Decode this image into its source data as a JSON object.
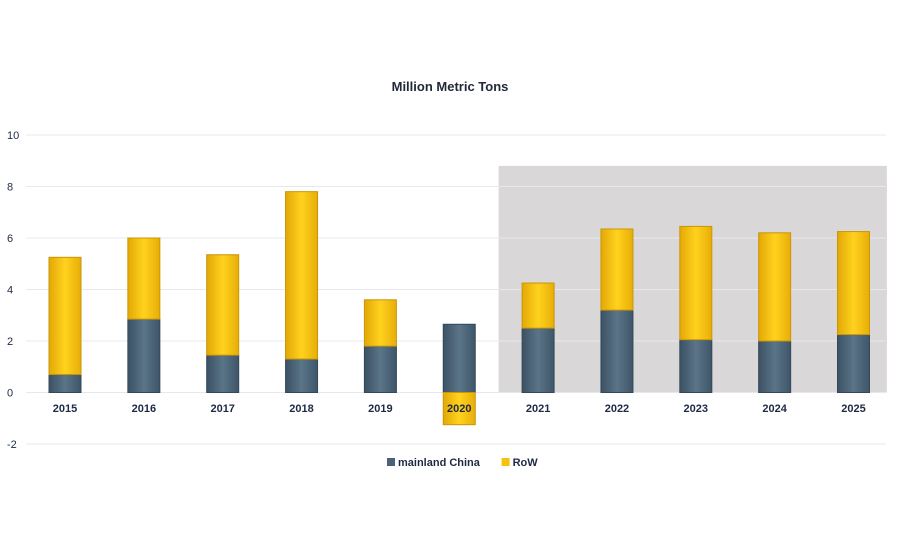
{
  "chart_data": {
    "type": "bar",
    "stacked": true,
    "title": "Million Metric Tons",
    "categories": [
      "2015",
      "2016",
      "2017",
      "2018",
      "2019",
      "2020",
      "2021",
      "2022",
      "2023",
      "2024",
      "2025"
    ],
    "series": [
      {
        "name": "mainland China",
        "color": "#4a6378",
        "values": [
          0.7,
          2.85,
          1.45,
          1.3,
          1.8,
          2.65,
          2.5,
          3.2,
          2.05,
          2.0,
          2.25
        ]
      },
      {
        "name": "RoW",
        "color": "#f6c10f",
        "values": [
          4.55,
          3.15,
          3.9,
          6.5,
          1.8,
          -1.25,
          1.75,
          3.15,
          4.4,
          4.2,
          4.0
        ]
      }
    ],
    "ylim": [
      -2,
      10
    ],
    "yticks": [
      -2,
      0,
      2,
      4,
      6,
      8,
      10
    ],
    "grid": true,
    "legend_position": "bottom",
    "shaded_region": {
      "from": "2021",
      "to": "2025",
      "ymax": 8.8,
      "color": "#d9d7d8"
    }
  }
}
